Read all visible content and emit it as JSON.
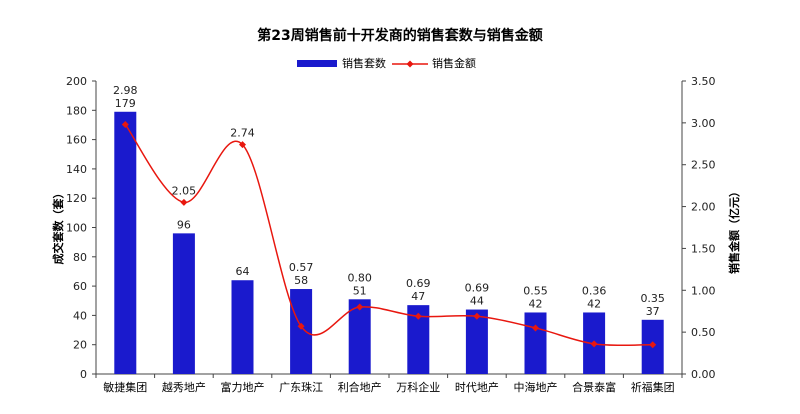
{
  "chart_data": {
    "type": "bar",
    "title": "第23周销售前十开发商的销售套数与销售金额",
    "categories": [
      "敏捷集团",
      "越秀地产",
      "富力地产",
      "广东珠江",
      "利合地产",
      "万科企业",
      "时代地产",
      "中海地产",
      "合景泰富",
      "祈福集团"
    ],
    "series": [
      {
        "name": "销售套数",
        "type": "bar",
        "axis": "left",
        "color": "#1a1acd",
        "values": [
          179,
          96,
          64,
          58,
          51,
          47,
          44,
          42,
          42,
          37
        ],
        "labels": [
          "179",
          "96",
          "64",
          "58",
          "51",
          "47",
          "44",
          "42",
          "42",
          "37"
        ]
      },
      {
        "name": "销售金额",
        "type": "line",
        "axis": "right",
        "color": "#e8170f",
        "values": [
          2.98,
          2.05,
          2.74,
          0.57,
          0.8,
          0.69,
          0.69,
          0.55,
          0.36,
          0.35
        ],
        "labels": [
          "2.98",
          "2.05",
          "2.74",
          "0.57",
          "0.80",
          "0.69",
          "0.69",
          "0.55",
          "0.36",
          "0.35"
        ]
      }
    ],
    "y_left": {
      "label": "成交套数（套）",
      "min": 0,
      "max": 200,
      "step": 20,
      "ticks": [
        "0",
        "20",
        "40",
        "60",
        "80",
        "100",
        "120",
        "140",
        "160",
        "180",
        "200"
      ]
    },
    "y_right": {
      "label": "销售金额（亿元）",
      "min": 0,
      "max": 3.5,
      "step": 0.5,
      "ticks": [
        "0.00",
        "0.50",
        "1.00",
        "1.50",
        "2.00",
        "2.50",
        "3.00",
        "3.50"
      ]
    },
    "legend": {
      "position": "top-center"
    },
    "grid": false
  }
}
